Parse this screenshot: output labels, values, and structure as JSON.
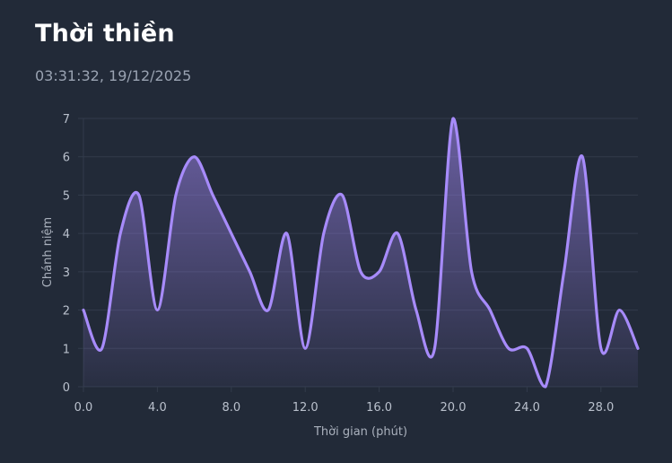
{
  "header": {
    "title": "Thời thiền",
    "timestamp": "03:31:32, 19/12/2025"
  },
  "colors": {
    "background": "#222a38",
    "line": "#a78bfa",
    "grid": "#323b4b"
  },
  "chart_data": {
    "type": "area",
    "xlabel": "Thời gian (phút)",
    "ylabel": "Chánh niệm",
    "xlim": [
      0,
      30
    ],
    "ylim": [
      0,
      7
    ],
    "x_ticks": [
      "0.0",
      "4.0",
      "8.0",
      "12.0",
      "16.0",
      "20.0",
      "24.0",
      "28.0"
    ],
    "y_ticks": [
      "0",
      "1",
      "2",
      "3",
      "4",
      "5",
      "6",
      "7"
    ],
    "grid": true,
    "x": [
      0,
      1,
      2,
      3,
      4,
      5,
      6,
      7,
      8,
      9,
      10,
      11,
      12,
      13,
      14,
      15,
      16,
      17,
      18,
      19,
      20,
      21,
      22,
      23,
      24,
      25,
      26,
      27,
      28,
      29,
      30
    ],
    "values": [
      2,
      1,
      4,
      5,
      2,
      5,
      6,
      5,
      4,
      3,
      2,
      4,
      1,
      4,
      5,
      3,
      3,
      4,
      2,
      1,
      7,
      3,
      2,
      1,
      1,
      0,
      3,
      6,
      1,
      2,
      1
    ]
  }
}
